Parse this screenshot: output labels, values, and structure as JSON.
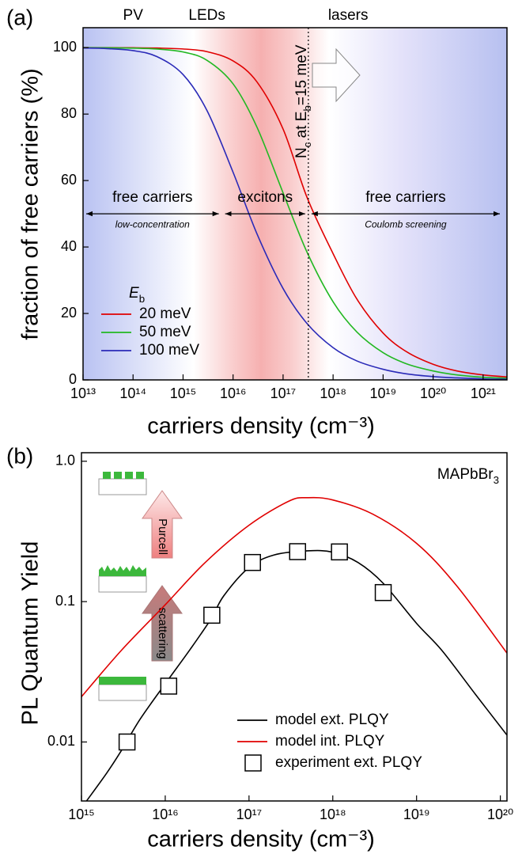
{
  "chart_data": [
    {
      "type": "line",
      "panel_label": "(a)",
      "xlabel": "carriers density (cm⁻³)",
      "ylabel": "fraction of free carriers (%)",
      "xscale": "log",
      "xlim": [
        10000000000000.0,
        3e+21
      ],
      "xticks": [
        {
          "value": 10000000000000.0,
          "label": "10¹³"
        },
        {
          "value": 100000000000000.0,
          "label": "10¹⁴"
        },
        {
          "value": 1000000000000000.0,
          "label": "10¹⁵"
        },
        {
          "value": 1e+16,
          "label": "10¹⁶"
        },
        {
          "value": 1e+17,
          "label": "10¹⁷"
        },
        {
          "value": 1e+18,
          "label": "10¹⁸"
        },
        {
          "value": 1e+19,
          "label": "10¹⁹"
        },
        {
          "value": 1e+20,
          "label": "10²⁰"
        },
        {
          "value": 1e+21,
          "label": "10²¹"
        }
      ],
      "ylim": [
        0,
        106
      ],
      "yticks": [
        0,
        20,
        40,
        60,
        80,
        100
      ],
      "legend": "lower left",
      "legend_title": [
        {
          "text": "E",
          "italic": true
        },
        {
          "text": "b",
          "sub": true
        }
      ],
      "x": [
        10000000000000.0,
        30000000000000.0,
        100000000000000.0,
        300000000000000.0,
        1000000000000000.0,
        3000000000000000.0,
        1e+16,
        3e+16,
        1e+17,
        3e+17,
        1e+18,
        3e+18,
        1e+19,
        3e+19,
        1e+20,
        3e+20,
        1e+21,
        3e+21
      ],
      "series": [
        {
          "name": "20 meV",
          "color": "#e00000",
          "values": [
            100.0,
            99.99,
            99.96,
            99.87,
            99.6,
            98.8,
            96.0,
            89.7,
            75.5,
            55,
            38.0,
            24.3,
            14.1,
            8.4,
            4.7,
            2.7,
            1.5,
            0.9
          ]
        },
        {
          "name": "50 meV",
          "color": "#22b822",
          "values": [
            99.99,
            99.96,
            99.86,
            99.59,
            98.7,
            96.2,
            89.1,
            76.1,
            56.3,
            38.5,
            23.5,
            14.4,
            8.2,
            4.8,
            2.7,
            1.5,
            0.8,
            0.5
          ]
        },
        {
          "name": "100 meV",
          "color": "#2a2ab8",
          "values": [
            99.9,
            99.71,
            99.1,
            97.3,
            91.9,
            81.1,
            62.5,
            44.0,
            27.5,
            17.0,
            9.7,
            5.7,
            3.2,
            1.8,
            1.0,
            0.6,
            0.3,
            0.2
          ]
        }
      ],
      "top_labels": [
        {
          "text": "PV",
          "x": 100000000000000.0
        },
        {
          "text": "LEDs",
          "x": 3000000000000000.0
        },
        {
          "text": "lasers",
          "x": 2e+18
        }
      ],
      "region_y": 50,
      "regions": [
        {
          "label": "free carriers",
          "note": "low-concentration",
          "from": 10000000000000.0,
          "to": 6000000000000000.0
        },
        {
          "label": "excitons",
          "from": 6000000000000000.0,
          "to": 3.2e+17
        },
        {
          "label": "free carriers",
          "note": "Coulomb screening",
          "from": 3.2e+17,
          "to": 2.5e+21
        }
      ],
      "threshold_x": 3.2e+17,
      "threshold_label": [
        {
          "text": "N"
        },
        {
          "text": "c",
          "sub": true
        },
        {
          "text": " at E"
        },
        {
          "text": "b",
          "sub": true
        },
        {
          "text": "=15 meV"
        }
      ]
    },
    {
      "type": "line",
      "panel_label": "(b)",
      "xlabel": "carriers density (cm⁻³)",
      "ylabel": "PL Quantum Yield",
      "xscale": "log",
      "xlim": [
        1000000000000000.0,
        1.2e+20
      ],
      "xticks": [
        {
          "value": 1000000000000000.0,
          "label": "10¹⁵"
        },
        {
          "value": 1e+16,
          "label": "10¹⁶"
        },
        {
          "value": 1e+17,
          "label": "10¹⁷"
        },
        {
          "value": 1e+18,
          "label": "10¹⁸"
        },
        {
          "value": 1e+19,
          "label": "10¹⁹"
        },
        {
          "value": 1e+20,
          "label": "10²⁰"
        }
      ],
      "yscale": "log",
      "ylim": [
        0.0038,
        1.15
      ],
      "yticks": [
        0.01,
        0.1,
        {
          "value": 1,
          "label": "1.0"
        }
      ],
      "legend": "lower right",
      "annotation": [
        {
          "text": "MAPbBr"
        },
        {
          "text": "3",
          "sub": true
        }
      ],
      "arrow_labels": [
        "Purcell",
        "scattering"
      ],
      "series": [
        {
          "name": "model ext. PLQY",
          "type": "line",
          "color": "#000000",
          "x": [
            1150000000000000.0,
            2000000000000000.0,
            3000000000000000.0,
            5000000000000000.0,
            1e+16,
            2e+16,
            3.5e+16,
            5e+16,
            1e+17,
            2e+17,
            5e+17,
            1e+18,
            2e+18,
            4e+18,
            1e+19,
            2e+19,
            5e+19,
            1.2e+20
          ],
          "values": [
            0.0038,
            0.006,
            0.0087,
            0.0145,
            0.026,
            0.046,
            0.075,
            0.11,
            0.175,
            0.215,
            0.23,
            0.225,
            0.19,
            0.135,
            0.07,
            0.045,
            0.022,
            0.0112
          ]
        },
        {
          "name": "model int. PLQY",
          "type": "line",
          "color": "#e00000",
          "x": [
            1000000000000000.0,
            3000000000000000.0,
            1e+16,
            3e+16,
            1e+17,
            3e+17,
            5e+17,
            1e+18,
            3e+18,
            1e+19,
            3e+19,
            1.2e+20
          ],
          "values": [
            0.021,
            0.045,
            0.095,
            0.19,
            0.35,
            0.52,
            0.55,
            0.53,
            0.42,
            0.26,
            0.13,
            0.043
          ]
        },
        {
          "name": "experiment ext. PLQY",
          "type": "scatter",
          "color": "#000000",
          "x": [
            3500000000000000.0,
            1.1e+16,
            3.6e+16,
            1.1e+17,
            3.8e+17,
            1.2e+18,
            4e+18
          ],
          "values": [
            0.01,
            0.025,
            0.08,
            0.19,
            0.227,
            0.226,
            0.116
          ]
        }
      ]
    }
  ]
}
